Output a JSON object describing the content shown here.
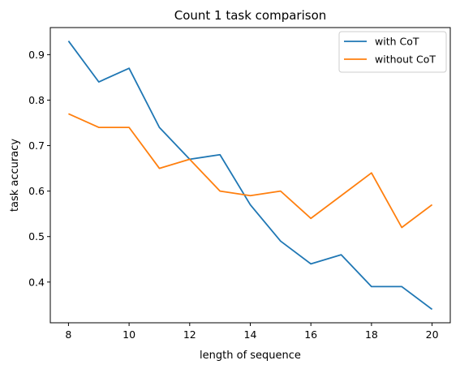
{
  "chart_data": {
    "type": "line",
    "title": "Count 1 task comparison",
    "xlabel": "length of sequence",
    "ylabel": "task accuracy",
    "x": [
      8,
      9,
      10,
      11,
      12,
      13,
      14,
      15,
      16,
      17,
      18,
      19,
      20
    ],
    "xlim": [
      7.4,
      20.6
    ],
    "ylim": [
      0.3105,
      0.9595
    ],
    "xticks": [
      8,
      10,
      12,
      14,
      16,
      18,
      20
    ],
    "yticks": [
      0.4,
      0.5,
      0.6,
      0.7,
      0.8,
      0.9
    ],
    "xtick_labels": [
      "8",
      "10",
      "12",
      "14",
      "16",
      "18",
      "20"
    ],
    "ytick_labels": [
      "0.4",
      "0.5",
      "0.6",
      "0.7",
      "0.8",
      "0.9"
    ],
    "grid": false,
    "legend_position": "top-right",
    "series": [
      {
        "name": "with CoT",
        "color": "#1f77b4",
        "values": [
          0.93,
          0.84,
          0.87,
          0.74,
          0.67,
          0.68,
          0.57,
          0.49,
          0.44,
          0.46,
          0.39,
          0.39,
          0.34
        ]
      },
      {
        "name": "without CoT",
        "color": "#ff7f0e",
        "values": [
          0.77,
          0.74,
          0.74,
          0.65,
          0.67,
          0.6,
          0.59,
          0.6,
          0.54,
          0.59,
          0.64,
          0.52,
          0.57
        ]
      }
    ]
  }
}
